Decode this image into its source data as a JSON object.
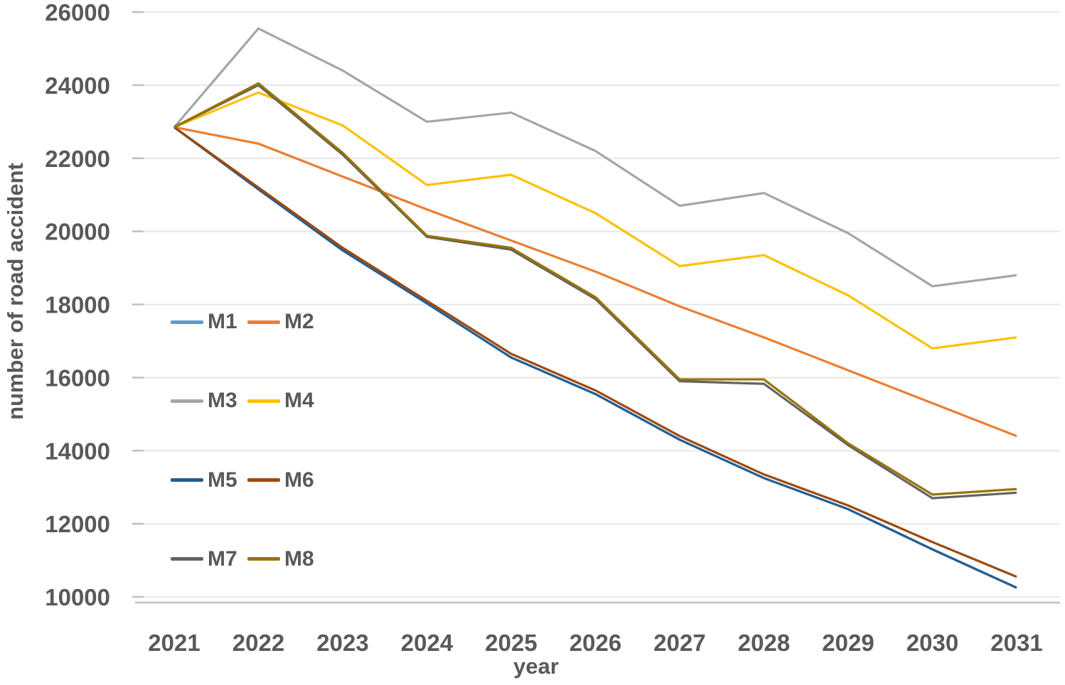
{
  "chart_data": {
    "type": "line",
    "title": "",
    "xlabel": "year",
    "ylabel": "number of road accident",
    "categories": [
      "2021",
      "2022",
      "2023",
      "2024",
      "2025",
      "2026",
      "2027",
      "2028",
      "2029",
      "2030",
      "2031"
    ],
    "y_tick_labels": [
      "26000",
      "24000",
      "22000",
      "20000",
      "18000",
      "16000",
      "14000",
      "12000",
      "10000"
    ],
    "ylim": [
      10000,
      26000
    ],
    "ytick_interval": 2000,
    "grid": "horizontal",
    "legend_position": "inside-left, 2 columns x 4 rows",
    "series": [
      {
        "name": "M1",
        "color": "#5B9BD5",
        "values": [
          22850,
          21150,
          19480,
          18030,
          16550,
          15550,
          14300,
          13250,
          12400,
          11300,
          10250
        ]
      },
      {
        "name": "M2",
        "color": "#ED7D31",
        "values": [
          22850,
          22400,
          21500,
          20600,
          19750,
          18900,
          17950,
          17100,
          16200,
          15300,
          14400
        ]
      },
      {
        "name": "M3",
        "color": "#A5A5A5",
        "values": [
          22850,
          25550,
          24400,
          23000,
          23250,
          22200,
          20700,
          21050,
          19950,
          18500,
          18800
        ]
      },
      {
        "name": "M4",
        "color": "#FFC000",
        "values": [
          22850,
          23800,
          22900,
          21270,
          21550,
          20500,
          19050,
          19350,
          18250,
          16800,
          17100
        ]
      },
      {
        "name": "M5",
        "color": "#255E91",
        "values": [
          22850,
          21150,
          19480,
          18030,
          16550,
          15550,
          14300,
          13250,
          12400,
          11300,
          10250
        ]
      },
      {
        "name": "M6",
        "color": "#9E480E",
        "values": [
          22850,
          21200,
          19550,
          18100,
          16650,
          15650,
          14400,
          13350,
          12500,
          11500,
          10550
        ]
      },
      {
        "name": "M7",
        "color": "#636363",
        "values": [
          22850,
          24000,
          22100,
          19850,
          19500,
          18150,
          15900,
          15830,
          14150,
          12700,
          12850
        ]
      },
      {
        "name": "M8",
        "color": "#997300",
        "values": [
          22850,
          24050,
          22150,
          19880,
          19550,
          18200,
          15950,
          15950,
          14200,
          12800,
          12950
        ]
      }
    ],
    "colors": {
      "text": "#595959",
      "gridline": "#E7E7E7",
      "axis_line": "#BFBFBF"
    }
  }
}
